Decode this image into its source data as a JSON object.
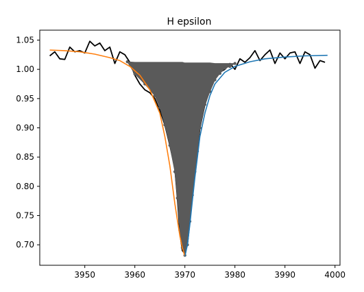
{
  "chart_data": {
    "type": "line",
    "title": "H epsilon",
    "xlabel": "",
    "ylabel": "",
    "xlim": [
      941,
      1001
    ],
    "ylim": [
      0.665,
      1.067
    ],
    "x_ticks": [
      3950,
      3960,
      3970,
      3980,
      3990,
      4000
    ],
    "x_tick_labels": [
      "3950",
      "3960",
      "3970",
      "3980",
      "3990",
      "4000"
    ],
    "y_ticks": [
      0.7,
      0.75,
      0.8,
      0.85,
      0.9,
      0.95,
      1.0,
      1.05
    ],
    "y_tick_labels": [
      "0.70",
      "0.75",
      "0.80",
      "0.85",
      "0.90",
      "0.95",
      "1.00",
      "1.05"
    ],
    "grid": false,
    "legend": "none",
    "series": [
      {
        "color": "#000000",
        "style": "line",
        "x": [
          3943.0,
          3944.0,
          3945.0,
          3946.0,
          3947.0,
          3948.0,
          3949.0,
          3950.0,
          3951.0,
          3952.0,
          3953.0,
          3954.0,
          3955.0,
          3956.0,
          3957.0,
          3958.0,
          3959.0,
          3960.0,
          3961.0,
          3962.0,
          3963.0,
          3964.0,
          3965.0,
          3966.0,
          3967.0,
          3968.0,
          3968.5,
          3969.0,
          3969.5,
          3970.0,
          3970.5,
          3971.0,
          3971.5,
          3972.0,
          3972.5,
          3973.0,
          3974.0,
          3975.0,
          3976.0,
          3977.0,
          3978.0,
          3979.0,
          3980.0,
          3981.0,
          3982.0,
          3983.0,
          3984.0,
          3985.0,
          3986.0,
          3987.0,
          3988.0,
          3989.0,
          3990.0,
          3991.0,
          3992.0,
          3993.0,
          3994.0,
          3995.0,
          3996.0,
          3997.0,
          3998.0
        ],
        "y": [
          1.023,
          1.03,
          1.018,
          1.017,
          1.038,
          1.03,
          1.032,
          1.028,
          1.048,
          1.04,
          1.045,
          1.032,
          1.038,
          1.01,
          1.03,
          1.025,
          1.012,
          0.99,
          0.975,
          0.965,
          0.96,
          0.95,
          0.93,
          0.905,
          0.87,
          0.83,
          0.78,
          0.72,
          0.69,
          0.685,
          0.7,
          0.74,
          0.79,
          0.83,
          0.86,
          0.9,
          0.94,
          0.965,
          0.985,
          0.995,
          1.0,
          1.01,
          1.0,
          1.018,
          1.012,
          1.02,
          1.032,
          1.015,
          1.025,
          1.033,
          1.01,
          1.028,
          1.018,
          1.028,
          1.03,
          1.01,
          1.03,
          1.025,
          1.002,
          1.015,
          1.012
        ]
      },
      {
        "color": "#5a5a5a",
        "style": "filled-scatter",
        "x": [
          3958.5,
          3960.0,
          3962.0,
          3964.0,
          3965.0,
          3966.0,
          3967.0,
          3968.0,
          3968.5,
          3969.0,
          3969.5,
          3970.0,
          3970.5,
          3971.0,
          3971.5,
          3972.0,
          3972.5,
          3973.0,
          3974.0,
          3975.0,
          3976.0,
          3977.0,
          3978.0,
          3979.0,
          3980.0
        ],
        "y": [
          1.013,
          0.992,
          0.975,
          0.955,
          0.935,
          0.905,
          0.87,
          0.825,
          0.78,
          0.725,
          0.695,
          0.682,
          0.7,
          0.74,
          0.785,
          0.825,
          0.86,
          0.9,
          0.94,
          0.962,
          0.982,
          0.993,
          1.002,
          1.005,
          1.01
        ],
        "top_y": [
          1.013,
          1.012,
          1.012,
          1.012,
          1.012,
          1.012,
          1.012,
          1.012,
          1.012,
          1.012,
          1.012,
          1.011,
          1.011,
          1.011,
          1.011,
          1.011,
          1.011,
          1.011,
          1.011,
          1.011,
          1.01,
          1.01,
          1.01,
          1.01,
          1.01
        ]
      },
      {
        "color": "#ff7f0e",
        "style": "line",
        "x": [
          3943.0,
          3946.0,
          3949.0,
          3952.0,
          3955.0,
          3957.0,
          3959.0,
          3961.0,
          3963.0,
          3965.0,
          3966.0,
          3967.0,
          3968.0,
          3969.0,
          3969.5,
          3970.0
        ],
        "y": [
          1.033,
          1.032,
          1.03,
          1.026,
          1.02,
          1.015,
          1.005,
          0.99,
          0.965,
          0.925,
          0.885,
          0.835,
          0.77,
          0.715,
          0.695,
          0.68
        ]
      },
      {
        "color": "#1f77b4",
        "style": "line",
        "x": [
          3970.0,
          3970.5,
          3971.0,
          3971.5,
          3972.0,
          3972.5,
          3973.0,
          3974.0,
          3975.0,
          3976.0,
          3978.0,
          3980.0,
          3983.0,
          3986.0,
          3990.0,
          3994.0,
          3998.5
        ],
        "y": [
          0.68,
          0.7,
          0.735,
          0.775,
          0.815,
          0.85,
          0.885,
          0.925,
          0.955,
          0.975,
          0.995,
          1.005,
          1.013,
          1.018,
          1.021,
          1.023,
          1.024
        ]
      }
    ]
  }
}
